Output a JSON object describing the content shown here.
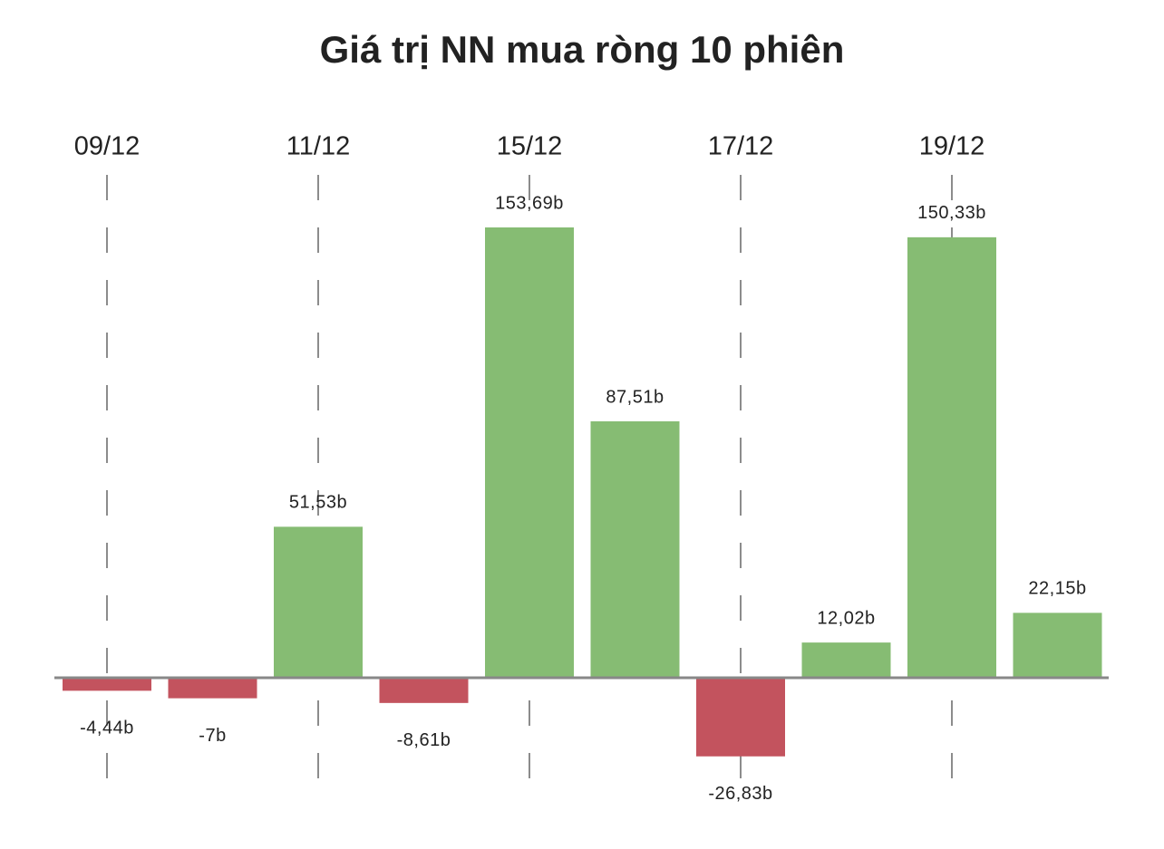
{
  "chart_data": {
    "type": "bar",
    "title": "Giá trị NN mua ròng 10 phiên",
    "categories": [
      "09/12",
      null,
      "11/12",
      null,
      "15/12",
      null,
      "17/12",
      null,
      "19/12",
      null
    ],
    "values": [
      -4.44,
      -7,
      51.53,
      -8.61,
      153.69,
      87.51,
      -26.83,
      12.02,
      150.33,
      22.15
    ],
    "value_labels": [
      "-4,44b",
      "-7b",
      "51,53b",
      "-8,61b",
      "153,69b",
      "87,51b",
      "-26,83b",
      "12,02b",
      "150,33b",
      "22,15b"
    ],
    "positive_color": "#86bc73",
    "negative_color": "#c3535e"
  }
}
